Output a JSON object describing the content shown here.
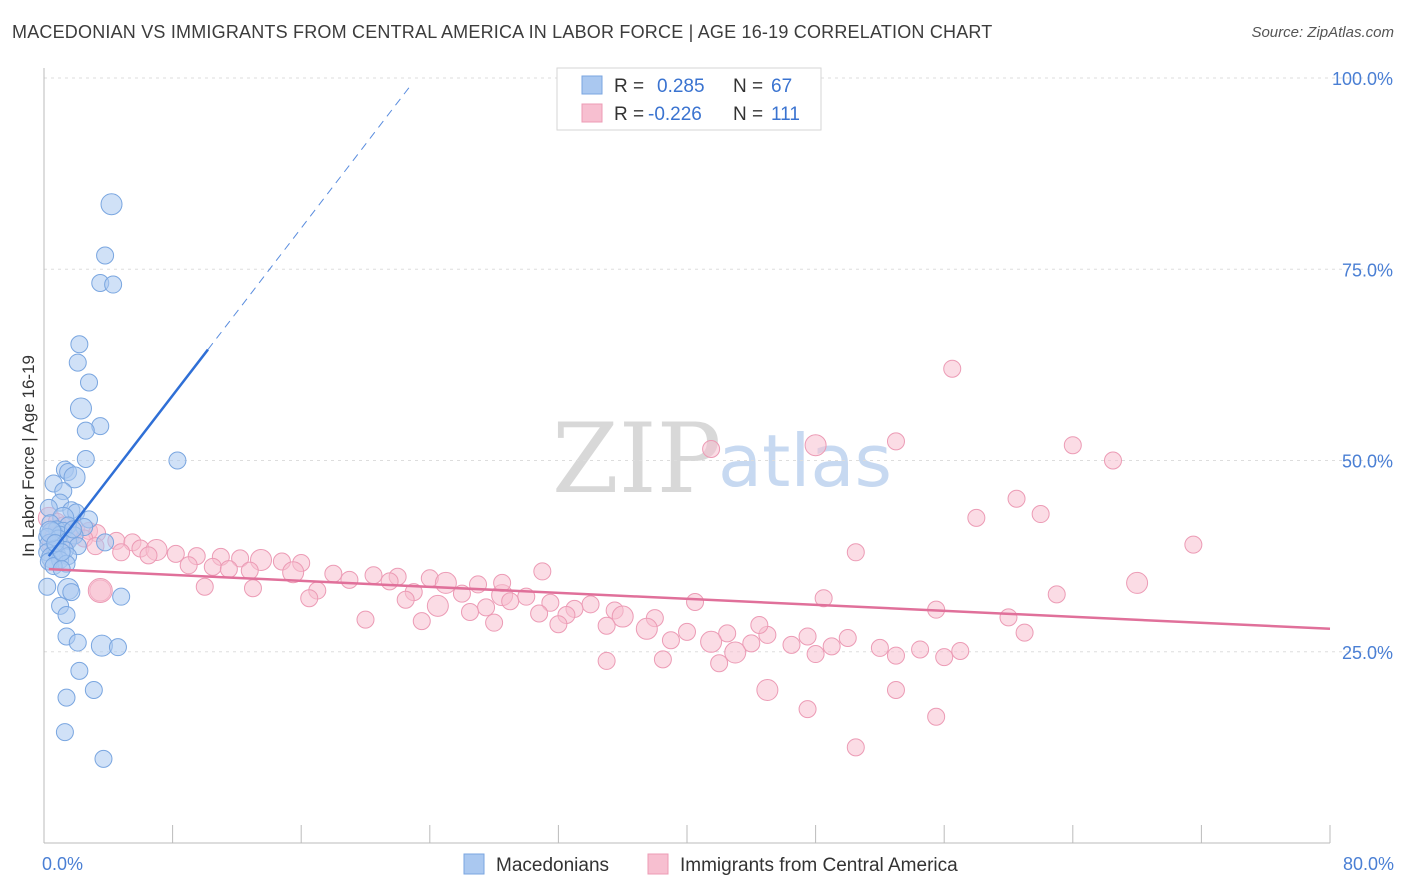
{
  "title": "MACEDONIAN VS IMMIGRANTS FROM CENTRAL AMERICA IN LABOR FORCE | AGE 16-19 CORRELATION CHART",
  "source": "Source: ZipAtlas.com",
  "watermark": {
    "zip": "ZIP",
    "atlas": "atlas"
  },
  "colors": {
    "blue_fill": "#aac8f0",
    "blue_stroke": "#7aa6e0",
    "blue_line": "#2f6fd6",
    "pink_fill": "#f7bfd0",
    "pink_stroke": "#ec9bb5",
    "pink_line": "#e0709a",
    "grid": "#dddddd",
    "axis_label": "#4a7fd4"
  },
  "legend": {
    "rows": [
      {
        "r_label": "R =",
        "r_value": "0.285",
        "n_label": "N =",
        "n_value": "67"
      },
      {
        "r_label": "R =",
        "r_value": "-0.226",
        "n_label": "N =",
        "n_value": "111"
      }
    ]
  },
  "bottom_legend": [
    "Macedonians",
    "Immigrants from Central America"
  ],
  "chart_data": {
    "type": "scatter",
    "title": "MACEDONIAN VS IMMIGRANTS FROM CENTRAL AMERICA IN LABOR FORCE | AGE 16-19 CORRELATION CHART",
    "xlabel": "",
    "ylabel": "In Labor Force | Age 16-19",
    "xlim": [
      0,
      80
    ],
    "ylim": [
      0,
      100
    ],
    "x_tick_labels": [
      "0.0%",
      "80.0%"
    ],
    "y_ticks": [
      25,
      50,
      75,
      100
    ],
    "y_tick_labels": [
      "25.0%",
      "50.0%",
      "75.0%",
      "100.0%"
    ],
    "grid": true,
    "series": [
      {
        "name": "Macedonians",
        "color": "blue",
        "r": 0.285,
        "n": 67,
        "trend": {
          "x": [
            0.3,
            10.2
          ],
          "y": [
            37.5,
            64.5
          ],
          "dashed_to": [
            22.8,
            99.0
          ]
        },
        "points": [
          [
            4.2,
            83.5
          ],
          [
            3.8,
            76.8
          ],
          [
            3.5,
            73.2
          ],
          [
            4.3,
            73.0
          ],
          [
            2.2,
            65.2
          ],
          [
            2.1,
            62.8
          ],
          [
            2.8,
            60.2
          ],
          [
            2.3,
            56.8
          ],
          [
            3.5,
            54.5
          ],
          [
            2.6,
            53.9
          ],
          [
            2.6,
            50.2
          ],
          [
            8.3,
            50.0
          ],
          [
            1.3,
            48.8
          ],
          [
            1.5,
            48.5
          ],
          [
            1.9,
            47.8
          ],
          [
            0.6,
            47.0
          ],
          [
            1.2,
            46.0
          ],
          [
            1.0,
            44.5
          ],
          [
            0.3,
            43.8
          ],
          [
            1.7,
            43.5
          ],
          [
            2.0,
            43.2
          ],
          [
            1.2,
            42.5
          ],
          [
            2.8,
            42.3
          ],
          [
            0.4,
            41.8
          ],
          [
            1.5,
            41.5
          ],
          [
            2.5,
            41.3
          ],
          [
            0.8,
            41.0
          ],
          [
            1.2,
            40.8
          ],
          [
            0.5,
            40.5
          ],
          [
            1.0,
            40.3
          ],
          [
            1.9,
            40.2
          ],
          [
            0.2,
            40.0
          ],
          [
            0.9,
            39.8
          ],
          [
            1.5,
            39.5
          ],
          [
            3.8,
            39.3
          ],
          [
            0.4,
            39.0
          ],
          [
            2.1,
            38.8
          ],
          [
            0.7,
            38.5
          ],
          [
            1.3,
            38.3
          ],
          [
            0.2,
            38.0
          ],
          [
            0.8,
            37.8
          ],
          [
            1.5,
            37.5
          ],
          [
            0.5,
            37.3
          ],
          [
            1.0,
            37.0
          ],
          [
            0.3,
            36.8
          ],
          [
            1.4,
            36.5
          ],
          [
            0.6,
            36.2
          ],
          [
            1.1,
            35.8
          ],
          [
            0.2,
            33.5
          ],
          [
            1.5,
            33.2
          ],
          [
            1.7,
            32.8
          ],
          [
            4.8,
            32.2
          ],
          [
            1.0,
            31.0
          ],
          [
            1.4,
            29.8
          ],
          [
            1.4,
            27.0
          ],
          [
            2.1,
            26.2
          ],
          [
            3.6,
            25.8
          ],
          [
            4.6,
            25.6
          ],
          [
            2.2,
            22.5
          ],
          [
            3.1,
            20.0
          ],
          [
            1.4,
            19.0
          ],
          [
            1.3,
            14.5
          ],
          [
            3.7,
            11.0
          ],
          [
            0.4,
            40.7
          ],
          [
            1.8,
            41.0
          ],
          [
            0.7,
            39.2
          ],
          [
            1.1,
            38.0
          ]
        ]
      },
      {
        "name": "Immigrants from Central America",
        "color": "pink",
        "r": -0.226,
        "n": 111,
        "trend": {
          "x": [
            0.3,
            80.0
          ],
          "y": [
            35.8,
            28.0
          ]
        },
        "points": [
          [
            0.3,
            42.5
          ],
          [
            0.8,
            42.0
          ],
          [
            1.2,
            41.5
          ],
          [
            2.0,
            41.0
          ],
          [
            2.8,
            40.8
          ],
          [
            3.3,
            40.5
          ],
          [
            0.6,
            40.2
          ],
          [
            1.5,
            40.0
          ],
          [
            2.5,
            39.8
          ],
          [
            4.5,
            39.5
          ],
          [
            5.5,
            39.3
          ],
          [
            0.4,
            39.0
          ],
          [
            3.2,
            38.8
          ],
          [
            6.0,
            38.5
          ],
          [
            7.0,
            38.3
          ],
          [
            4.8,
            38.0
          ],
          [
            8.2,
            37.8
          ],
          [
            6.5,
            37.6
          ],
          [
            9.5,
            37.5
          ],
          [
            11.0,
            37.4
          ],
          [
            12.2,
            37.2
          ],
          [
            13.5,
            37.0
          ],
          [
            14.8,
            36.8
          ],
          [
            16.0,
            36.6
          ],
          [
            9.0,
            36.3
          ],
          [
            10.5,
            36.1
          ],
          [
            11.5,
            35.8
          ],
          [
            12.8,
            35.6
          ],
          [
            15.5,
            35.4
          ],
          [
            18.0,
            35.2
          ],
          [
            20.5,
            35.0
          ],
          [
            22.0,
            34.8
          ],
          [
            24.0,
            34.6
          ],
          [
            19.0,
            34.4
          ],
          [
            21.5,
            34.2
          ],
          [
            25.0,
            34.0
          ],
          [
            27.0,
            33.8
          ],
          [
            10.0,
            33.5
          ],
          [
            13.0,
            33.3
          ],
          [
            17.0,
            33.0
          ],
          [
            23.0,
            32.8
          ],
          [
            26.0,
            32.6
          ],
          [
            28.5,
            32.4
          ],
          [
            30.0,
            32.2
          ],
          [
            16.5,
            32.0
          ],
          [
            22.5,
            31.8
          ],
          [
            29.0,
            31.6
          ],
          [
            31.5,
            31.4
          ],
          [
            34.0,
            31.2
          ],
          [
            24.5,
            31.0
          ],
          [
            27.5,
            30.8
          ],
          [
            33.0,
            30.6
          ],
          [
            35.5,
            30.4
          ],
          [
            26.5,
            30.2
          ],
          [
            30.8,
            30.0
          ],
          [
            32.5,
            29.8
          ],
          [
            36.0,
            29.6
          ],
          [
            38.0,
            29.4
          ],
          [
            20.0,
            29.2
          ],
          [
            23.5,
            29.0
          ],
          [
            28.0,
            28.8
          ],
          [
            32.0,
            28.6
          ],
          [
            35.0,
            28.4
          ],
          [
            37.5,
            28.0
          ],
          [
            40.0,
            27.6
          ],
          [
            42.5,
            27.4
          ],
          [
            45.0,
            27.2
          ],
          [
            47.5,
            27.0
          ],
          [
            50.0,
            26.8
          ],
          [
            39.0,
            26.5
          ],
          [
            41.5,
            26.3
          ],
          [
            44.0,
            26.1
          ],
          [
            46.5,
            25.9
          ],
          [
            49.0,
            25.7
          ],
          [
            52.0,
            25.5
          ],
          [
            54.5,
            25.3
          ],
          [
            57.0,
            25.1
          ],
          [
            43.0,
            24.9
          ],
          [
            48.0,
            24.7
          ],
          [
            53.0,
            24.5
          ],
          [
            56.0,
            24.3
          ],
          [
            38.5,
            24.0
          ],
          [
            35.0,
            23.8
          ],
          [
            42.0,
            23.5
          ],
          [
            3.5,
            33.0
          ],
          [
            31.0,
            35.5
          ],
          [
            28.5,
            34.0
          ],
          [
            40.5,
            31.5
          ],
          [
            48.5,
            32.0
          ],
          [
            55.5,
            30.5
          ],
          [
            63.0,
            32.5
          ],
          [
            68.0,
            34.0
          ],
          [
            50.5,
            38.0
          ],
          [
            58.0,
            42.5
          ],
          [
            60.5,
            45.0
          ],
          [
            62.0,
            43.0
          ],
          [
            66.5,
            50.0
          ],
          [
            64.0,
            52.0
          ],
          [
            48.0,
            52.0
          ],
          [
            41.5,
            51.5
          ],
          [
            53.0,
            52.5
          ],
          [
            56.5,
            62.0
          ],
          [
            71.5,
            39.0
          ],
          [
            53.0,
            20.0
          ],
          [
            55.5,
            16.5
          ],
          [
            45.0,
            20.0
          ],
          [
            47.5,
            17.5
          ],
          [
            50.5,
            12.5
          ],
          [
            44.5,
            28.5
          ],
          [
            61.0,
            27.5
          ],
          [
            60.0,
            29.5
          ]
        ]
      }
    ]
  }
}
